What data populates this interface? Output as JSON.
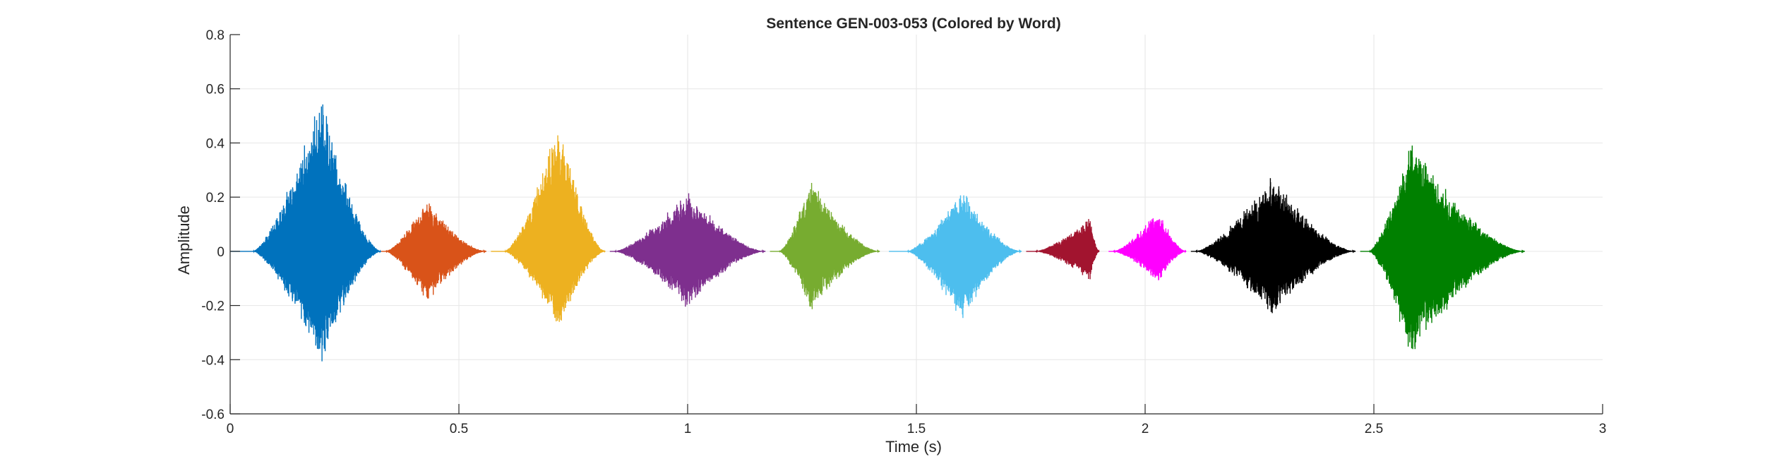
{
  "chart_data": {
    "type": "line",
    "title": "Sentence GEN-003-053 (Colored by Word)",
    "xlabel": "Time (s)",
    "ylabel": "Amplitude",
    "xlim": [
      0,
      3
    ],
    "ylim": [
      -0.6,
      0.8
    ],
    "xticks": [
      0,
      0.5,
      1,
      1.5,
      2,
      2.5,
      3
    ],
    "xtick_labels": [
      "0",
      "0.5",
      "1",
      "1.5",
      "2",
      "2.5",
      "3"
    ],
    "yticks": [
      -0.6,
      -0.4,
      -0.2,
      0,
      0.2,
      0.4,
      0.6,
      0.8
    ],
    "ytick_labels": [
      "-0.6",
      "-0.4",
      "-0.2",
      "0",
      "0.2",
      "0.4",
      "0.6",
      "0.8"
    ],
    "grid": true,
    "series": [
      {
        "color": "#0072BD",
        "x_start": 0.0,
        "x_end": 0.33,
        "onset": 0.05,
        "peak_time": 0.2,
        "peak_pos": 0.6,
        "peak_neg": -0.44
      },
      {
        "color": "#D95319",
        "x_start": 0.33,
        "x_end": 0.56,
        "onset": 0.34,
        "peak_time": 0.43,
        "peak_pos": 0.2,
        "peak_neg": -0.2
      },
      {
        "color": "#EDB120",
        "x_start": 0.57,
        "x_end": 0.82,
        "onset": 0.6,
        "peak_time": 0.72,
        "peak_pos": 0.51,
        "peak_neg": -0.31
      },
      {
        "color": "#7E2F8E",
        "x_start": 0.83,
        "x_end": 1.17,
        "onset": 0.84,
        "peak_time": 1.0,
        "peak_pos": 0.23,
        "peak_neg": -0.22
      },
      {
        "color": "#77AC30",
        "x_start": 1.18,
        "x_end": 1.42,
        "onset": 1.2,
        "peak_time": 1.27,
        "peak_pos": 0.28,
        "peak_neg": -0.23
      },
      {
        "color": "#4DBEEE",
        "x_start": 1.44,
        "x_end": 1.73,
        "onset": 1.48,
        "peak_time": 1.6,
        "peak_pos": 0.24,
        "peak_neg": -0.27
      },
      {
        "color": "#A2142F",
        "x_start": 1.74,
        "x_end": 1.9,
        "onset": 1.76,
        "peak_time": 1.88,
        "peak_pos": 0.13,
        "peak_neg": -0.11
      },
      {
        "color": "#FF00FF",
        "x_start": 1.92,
        "x_end": 2.09,
        "onset": 1.93,
        "peak_time": 2.03,
        "peak_pos": 0.16,
        "peak_neg": -0.12
      },
      {
        "color": "#000000",
        "x_start": 2.1,
        "x_end": 2.46,
        "onset": 2.11,
        "peak_time": 2.28,
        "peak_pos": 0.29,
        "peak_neg": -0.25
      },
      {
        "color": "#008000",
        "x_start": 2.47,
        "x_end": 2.83,
        "onset": 2.49,
        "peak_time": 2.58,
        "peak_pos": 0.42,
        "peak_neg": -0.4
      }
    ]
  }
}
